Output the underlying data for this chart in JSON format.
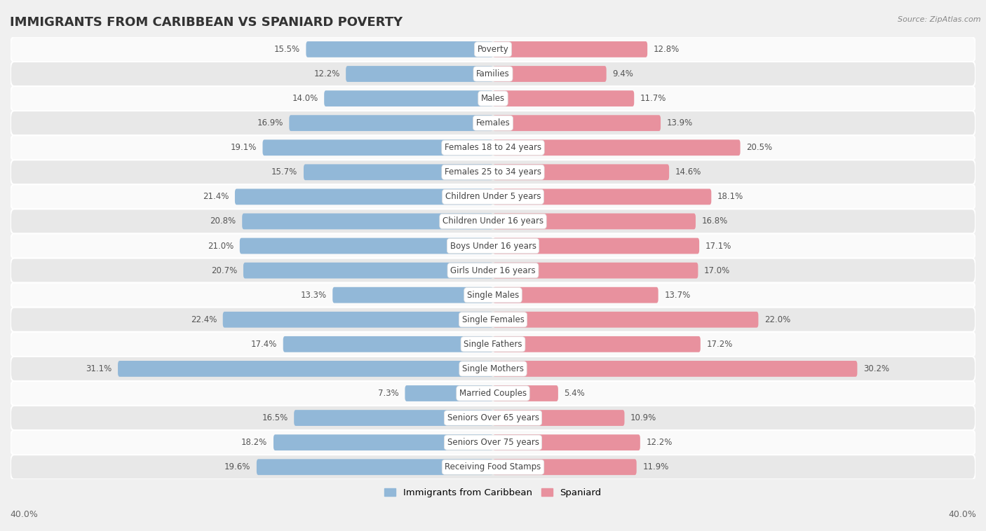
{
  "title": "IMMIGRANTS FROM CARIBBEAN VS SPANIARD POVERTY",
  "source": "Source: ZipAtlas.com",
  "categories": [
    "Poverty",
    "Families",
    "Males",
    "Females",
    "Females 18 to 24 years",
    "Females 25 to 34 years",
    "Children Under 5 years",
    "Children Under 16 years",
    "Boys Under 16 years",
    "Girls Under 16 years",
    "Single Males",
    "Single Females",
    "Single Fathers",
    "Single Mothers",
    "Married Couples",
    "Seniors Over 65 years",
    "Seniors Over 75 years",
    "Receiving Food Stamps"
  ],
  "caribbean_values": [
    15.5,
    12.2,
    14.0,
    16.9,
    19.1,
    15.7,
    21.4,
    20.8,
    21.0,
    20.7,
    13.3,
    22.4,
    17.4,
    31.1,
    7.3,
    16.5,
    18.2,
    19.6
  ],
  "spaniard_values": [
    12.8,
    9.4,
    11.7,
    13.9,
    20.5,
    14.6,
    18.1,
    16.8,
    17.1,
    17.0,
    13.7,
    22.0,
    17.2,
    30.2,
    5.4,
    10.9,
    12.2,
    11.9
  ],
  "caribbean_color": "#92b8d8",
  "spaniard_color": "#e8919e",
  "background_color": "#f0f0f0",
  "row_color_light": "#fafafa",
  "row_color_dark": "#e8e8e8",
  "xlim": 40.0,
  "legend_labels": [
    "Immigrants from Caribbean",
    "Spaniard"
  ]
}
